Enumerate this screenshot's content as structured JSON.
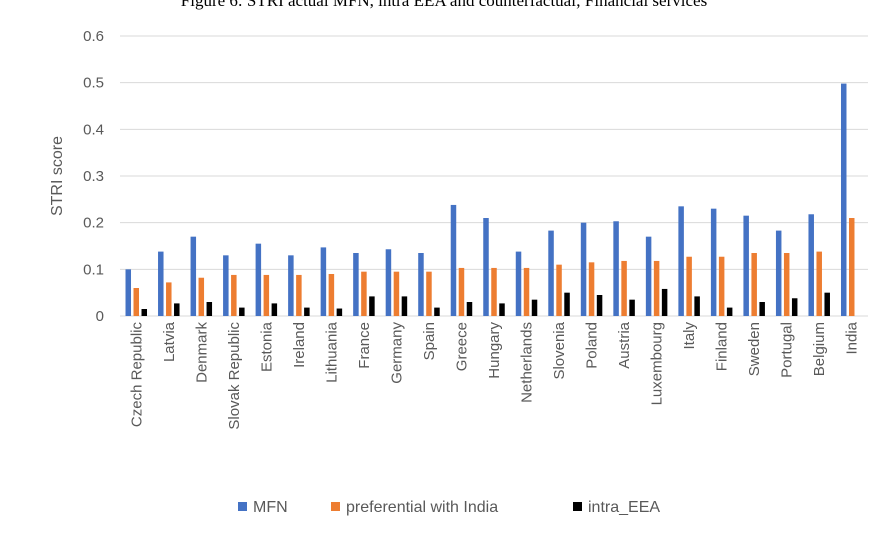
{
  "caption": "Figure 6: STRI actual MFN, intra EEA and counterfactual; Financial services",
  "chart_data": {
    "type": "bar",
    "title": "",
    "xlabel": "",
    "ylabel": "STRI score",
    "ylim": [
      0,
      0.6
    ],
    "yticks": [
      "0",
      "0.1",
      "0.2",
      "0.3",
      "0.4",
      "0.5",
      "0.6"
    ],
    "grid": true,
    "legend_position": "bottom",
    "categories": [
      "Czech Republic",
      "Latvia",
      "Denmark",
      "Slovak Republic",
      "Estonia",
      "Ireland",
      "Lithuania",
      "France",
      "Germany",
      "Spain",
      "Greece",
      "Hungary",
      "Netherlands",
      "Slovenia",
      "Poland",
      "Austria",
      "Luxembourg",
      "Italy",
      "Finland",
      "Sweden",
      "Portugal",
      "Belgium",
      "India"
    ],
    "series": [
      {
        "name": "MFN",
        "color": "#4472c4",
        "values": [
          0.1,
          0.138,
          0.17,
          0.13,
          0.155,
          0.13,
          0.147,
          0.135,
          0.143,
          0.135,
          0.238,
          0.21,
          0.138,
          0.183,
          0.2,
          0.203,
          0.17,
          0.235,
          0.23,
          0.215,
          0.183,
          0.218,
          0.498
        ]
      },
      {
        "name": "preferential with India",
        "color": "#ed7d31",
        "values": [
          0.06,
          0.072,
          0.082,
          0.088,
          0.088,
          0.088,
          0.09,
          0.095,
          0.095,
          0.095,
          0.103,
          0.103,
          0.103,
          0.11,
          0.115,
          0.118,
          0.118,
          0.127,
          0.127,
          0.135,
          0.135,
          0.138,
          0.21
        ]
      },
      {
        "name": "intra_EEA",
        "color": "#000000",
        "values": [
          0.015,
          0.027,
          0.03,
          0.018,
          0.027,
          0.018,
          0.016,
          0.042,
          0.042,
          0.018,
          0.03,
          0.027,
          0.035,
          0.05,
          0.045,
          0.035,
          0.058,
          0.042,
          0.018,
          0.03,
          0.038,
          0.05,
          null
        ]
      }
    ]
  }
}
